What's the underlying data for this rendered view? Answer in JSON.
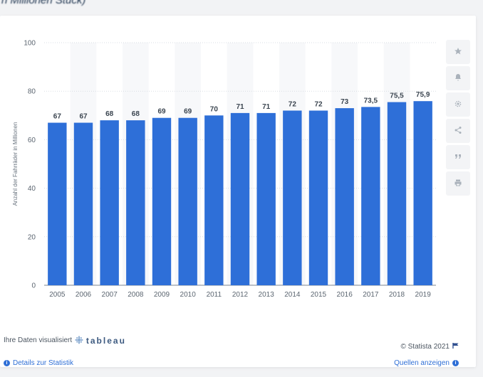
{
  "header": {
    "title": "n Millionen Stück)"
  },
  "chart_data": {
    "type": "bar",
    "categories": [
      "2005",
      "2006",
      "2007",
      "2008",
      "2009",
      "2010",
      "2011",
      "2012",
      "2013",
      "2014",
      "2015",
      "2016",
      "2017",
      "2018",
      "2019"
    ],
    "values": [
      67,
      67,
      68,
      68,
      69,
      69,
      70,
      71,
      71,
      72,
      72,
      73,
      73.5,
      75.5,
      75.9
    ],
    "value_labels": [
      "67",
      "67",
      "68",
      "68",
      "69",
      "69",
      "70",
      "71",
      "71",
      "72",
      "72",
      "73",
      "73,5",
      "75,5",
      "75,9"
    ],
    "ylabel": "Anzahl der Fahrräder in Millionen",
    "ylim": [
      0,
      100
    ],
    "yticks": [
      0,
      20,
      40,
      60,
      80,
      100
    ],
    "bar_color": "#2e6fd8",
    "grid": true,
    "banding": true
  },
  "sidebar": {
    "items": [
      {
        "icon": "star-icon"
      },
      {
        "icon": "bell-icon"
      },
      {
        "icon": "gear-icon"
      },
      {
        "icon": "share-icon"
      },
      {
        "icon": "quote-icon"
      },
      {
        "icon": "print-icon"
      }
    ]
  },
  "footer": {
    "visualized_text": "Ihre Daten visualisiert",
    "tableau_text": "tableau",
    "copyright": "© Statista 2021",
    "details_link": "Details zur Statistik",
    "sources_link": "Quellen anzeigen"
  },
  "colors": {
    "accent": "#2f6fd6",
    "bar": "#2e6fd8"
  }
}
